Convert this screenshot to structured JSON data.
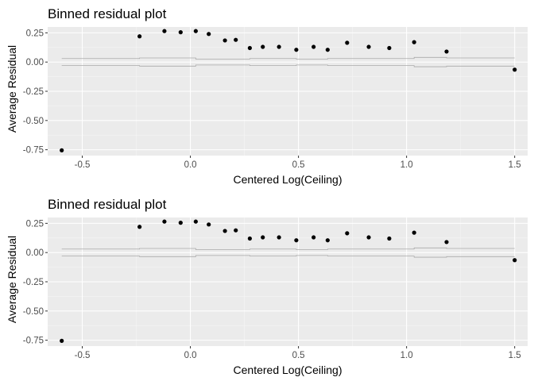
{
  "chart_data": [
    {
      "type": "scatter",
      "title": "Binned residual plot",
      "xlabel": "Centered Log(Ceiling)",
      "ylabel": "Average Residual",
      "xlim": [
        -0.66,
        1.56
      ],
      "ylim": [
        -0.8,
        0.3
      ],
      "x_ticks": [
        -0.5,
        0.0,
        0.5,
        1.0,
        1.5
      ],
      "x_tick_labels": [
        "-0.5",
        "0.0",
        "0.5",
        "1.0",
        "1.5"
      ],
      "y_ticks": [
        -0.75,
        -0.5,
        -0.25,
        0.0,
        0.25
      ],
      "y_tick_labels": [
        "-0.75",
        "-0.50",
        "-0.25",
        "0.00",
        "0.25"
      ],
      "grid": true,
      "points": {
        "x": [
          -0.595,
          -0.235,
          -0.12,
          -0.045,
          0.025,
          0.085,
          0.16,
          0.21,
          0.275,
          0.335,
          0.41,
          0.49,
          0.57,
          0.635,
          0.725,
          0.825,
          0.92,
          1.035,
          1.185,
          1.5
        ],
        "y": [
          -0.755,
          0.22,
          0.265,
          0.255,
          0.265,
          0.24,
          0.185,
          0.19,
          0.12,
          0.13,
          0.13,
          0.105,
          0.13,
          0.105,
          0.165,
          0.13,
          0.12,
          0.17,
          0.09,
          -0.065
        ]
      },
      "bounds": {
        "x": [
          -0.595,
          -0.235,
          -0.235,
          0.025,
          0.025,
          0.275,
          0.275,
          0.49,
          0.49,
          0.635,
          0.635,
          1.035,
          1.035,
          1.185,
          1.185,
          1.5
        ],
        "upper": [
          0.03,
          0.03,
          0.035,
          0.035,
          0.025,
          0.025,
          0.03,
          0.03,
          0.025,
          0.025,
          0.03,
          0.03,
          0.04,
          0.04,
          0.035,
          0.035
        ],
        "lower": [
          -0.03,
          -0.03,
          -0.035,
          -0.035,
          -0.025,
          -0.025,
          -0.03,
          -0.03,
          -0.025,
          -0.025,
          -0.03,
          -0.03,
          -0.04,
          -0.04,
          -0.035,
          -0.035
        ]
      }
    },
    {
      "type": "scatter",
      "title": "Binned residual plot",
      "xlabel": "Centered Log(Ceiling)",
      "ylabel": "Average Residual",
      "xlim": [
        -0.66,
        1.56
      ],
      "ylim": [
        -0.8,
        0.3
      ],
      "x_ticks": [
        -0.5,
        0.0,
        0.5,
        1.0,
        1.5
      ],
      "x_tick_labels": [
        "-0.5",
        "0.0",
        "0.5",
        "1.0",
        "1.5"
      ],
      "y_ticks": [
        -0.75,
        -0.5,
        -0.25,
        0.0,
        0.25
      ],
      "y_tick_labels": [
        "-0.75",
        "-0.50",
        "-0.25",
        "0.00",
        "0.25"
      ],
      "grid": true,
      "points": {
        "x": [
          -0.595,
          -0.235,
          -0.12,
          -0.045,
          0.025,
          0.085,
          0.16,
          0.21,
          0.275,
          0.335,
          0.41,
          0.49,
          0.57,
          0.635,
          0.725,
          0.825,
          0.92,
          1.035,
          1.185,
          1.5
        ],
        "y": [
          -0.755,
          0.22,
          0.265,
          0.255,
          0.265,
          0.24,
          0.185,
          0.19,
          0.12,
          0.13,
          0.13,
          0.105,
          0.13,
          0.105,
          0.165,
          0.13,
          0.12,
          0.17,
          0.09,
          -0.065
        ]
      },
      "bounds": {
        "x": [
          -0.595,
          -0.235,
          -0.235,
          0.025,
          0.025,
          0.275,
          0.275,
          0.49,
          0.49,
          0.635,
          0.635,
          1.035,
          1.035,
          1.185,
          1.185,
          1.5
        ],
        "upper": [
          0.03,
          0.03,
          0.035,
          0.035,
          0.025,
          0.025,
          0.03,
          0.03,
          0.025,
          0.025,
          0.03,
          0.03,
          0.04,
          0.04,
          0.035,
          0.035
        ],
        "lower": [
          -0.03,
          -0.03,
          -0.035,
          -0.035,
          -0.025,
          -0.025,
          -0.03,
          -0.03,
          -0.025,
          -0.025,
          -0.03,
          -0.03,
          -0.04,
          -0.04,
          -0.035,
          -0.035
        ]
      }
    }
  ]
}
